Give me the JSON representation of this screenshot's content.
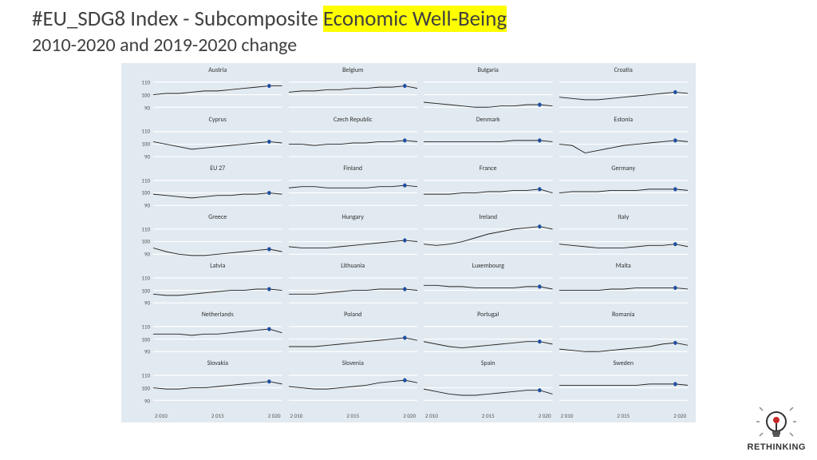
{
  "title": {
    "prefix": "#EU_SDG8 Index -  Subcomposite ",
    "highlight": "Economic Well-Being",
    "subtitle": "2010-2020 and 2019-2020 change"
  },
  "chart": {
    "background_color": "#e1eaf0",
    "gridline_color": "#ffffff",
    "line_color": "#222222",
    "marker_color": "#1f4ea1",
    "ylim": [
      85,
      115
    ],
    "yticks": [
      90,
      100,
      110
    ],
    "xlim": [
      2010,
      2020
    ],
    "xticks": [
      "2 010",
      "2 015",
      "2 020"
    ],
    "label_fontsize": 8,
    "axis_fontsize": 7,
    "marker_radius": 2.2,
    "line_width": 0.8,
    "panels": [
      {
        "name": "Austria",
        "data": [
          100,
          101,
          101,
          102,
          103,
          103,
          104,
          105,
          106,
          107,
          107
        ],
        "marker": [
          2019,
          107
        ]
      },
      {
        "name": "Belgium",
        "data": [
          102,
          103,
          103,
          104,
          104,
          105,
          105,
          106,
          106,
          107,
          105
        ],
        "marker": [
          2019,
          107
        ]
      },
      {
        "name": "Bulgaria",
        "data": [
          94,
          93,
          92,
          91,
          90,
          90,
          91,
          91,
          92,
          92,
          91
        ],
        "marker": [
          2019,
          92
        ]
      },
      {
        "name": "Croatia",
        "data": [
          98,
          97,
          96,
          96,
          97,
          98,
          99,
          100,
          101,
          102,
          101
        ],
        "marker": [
          2019,
          102
        ]
      },
      {
        "name": "Cyprus",
        "data": [
          102,
          100,
          98,
          96,
          97,
          98,
          99,
          100,
          101,
          102,
          101
        ],
        "marker": [
          2019,
          102
        ]
      },
      {
        "name": "Czech Republic",
        "data": [
          100,
          100,
          99,
          100,
          100,
          101,
          101,
          102,
          102,
          103,
          102
        ],
        "marker": [
          2019,
          103
        ]
      },
      {
        "name": "Denmark",
        "data": [
          102,
          102,
          102,
          102,
          102,
          102,
          102,
          103,
          103,
          103,
          102
        ],
        "marker": [
          2019,
          103
        ]
      },
      {
        "name": "Estonia",
        "data": [
          100,
          99,
          93,
          95,
          97,
          99,
          100,
          101,
          102,
          103,
          102
        ],
        "marker": [
          2019,
          103
        ]
      },
      {
        "name": "EU 27",
        "data": [
          99,
          98,
          97,
          96,
          97,
          98,
          98,
          99,
          99,
          100,
          99
        ],
        "marker": [
          2019,
          100
        ]
      },
      {
        "name": "Finland",
        "data": [
          104,
          105,
          105,
          104,
          104,
          104,
          104,
          105,
          105,
          106,
          105
        ],
        "marker": [
          2019,
          106
        ]
      },
      {
        "name": "France",
        "data": [
          99,
          99,
          99,
          100,
          100,
          101,
          101,
          102,
          102,
          103,
          100
        ],
        "marker": [
          2019,
          103
        ]
      },
      {
        "name": "Germany",
        "data": [
          100,
          101,
          101,
          101,
          102,
          102,
          102,
          103,
          103,
          103,
          102
        ],
        "marker": [
          2019,
          103
        ]
      },
      {
        "name": "Greece",
        "data": [
          95,
          92,
          90,
          89,
          89,
          90,
          91,
          92,
          93,
          94,
          92
        ],
        "marker": [
          2019,
          94
        ]
      },
      {
        "name": "Hungary",
        "data": [
          96,
          95,
          95,
          95,
          96,
          97,
          98,
          99,
          100,
          101,
          100
        ],
        "marker": [
          2019,
          101
        ]
      },
      {
        "name": "Ireland",
        "data": [
          98,
          97,
          98,
          100,
          103,
          106,
          108,
          110,
          111,
          112,
          110
        ],
        "marker": [
          2019,
          112
        ]
      },
      {
        "name": "Italy",
        "data": [
          98,
          97,
          96,
          95,
          95,
          95,
          96,
          97,
          97,
          98,
          96
        ],
        "marker": [
          2019,
          98
        ]
      },
      {
        "name": "Latvia",
        "data": [
          97,
          96,
          96,
          97,
          98,
          99,
          100,
          100,
          101,
          101,
          100
        ],
        "marker": [
          2019,
          101
        ]
      },
      {
        "name": "Lithuania",
        "data": [
          97,
          97,
          97,
          98,
          99,
          100,
          100,
          101,
          101,
          101,
          100
        ],
        "marker": [
          2019,
          101
        ]
      },
      {
        "name": "Luxembourg",
        "data": [
          104,
          104,
          103,
          103,
          102,
          102,
          102,
          102,
          103,
          103,
          101
        ],
        "marker": [
          2019,
          103
        ]
      },
      {
        "name": "Malta",
        "data": [
          100,
          100,
          100,
          100,
          101,
          101,
          102,
          102,
          102,
          102,
          101
        ],
        "marker": [
          2019,
          102
        ]
      },
      {
        "name": "Netherlands",
        "data": [
          104,
          104,
          104,
          103,
          104,
          104,
          105,
          106,
          107,
          108,
          105
        ],
        "marker": [
          2019,
          108
        ]
      },
      {
        "name": "Poland",
        "data": [
          94,
          94,
          94,
          95,
          96,
          97,
          98,
          99,
          100,
          101,
          99
        ],
        "marker": [
          2019,
          101
        ]
      },
      {
        "name": "Portugal",
        "data": [
          98,
          96,
          94,
          93,
          94,
          95,
          96,
          97,
          98,
          98,
          96
        ],
        "marker": [
          2019,
          98
        ]
      },
      {
        "name": "Romania",
        "data": [
          92,
          91,
          90,
          90,
          91,
          92,
          93,
          94,
          96,
          97,
          95
        ],
        "marker": [
          2019,
          97
        ]
      },
      {
        "name": "Slovakia",
        "data": [
          100,
          99,
          99,
          100,
          100,
          101,
          102,
          103,
          104,
          105,
          103
        ],
        "marker": [
          2019,
          105
        ]
      },
      {
        "name": "Slovenia",
        "data": [
          101,
          100,
          99,
          99,
          100,
          101,
          102,
          104,
          105,
          106,
          104
        ],
        "marker": [
          2019,
          106
        ]
      },
      {
        "name": "Spain",
        "data": [
          99,
          97,
          95,
          94,
          94,
          95,
          96,
          97,
          98,
          98,
          95
        ],
        "marker": [
          2019,
          98
        ]
      },
      {
        "name": "Sweden",
        "data": [
          102,
          102,
          102,
          102,
          102,
          102,
          102,
          103,
          103,
          103,
          102
        ],
        "marker": [
          2019,
          103
        ]
      }
    ]
  },
  "logo": {
    "text": "RETHINKING"
  }
}
